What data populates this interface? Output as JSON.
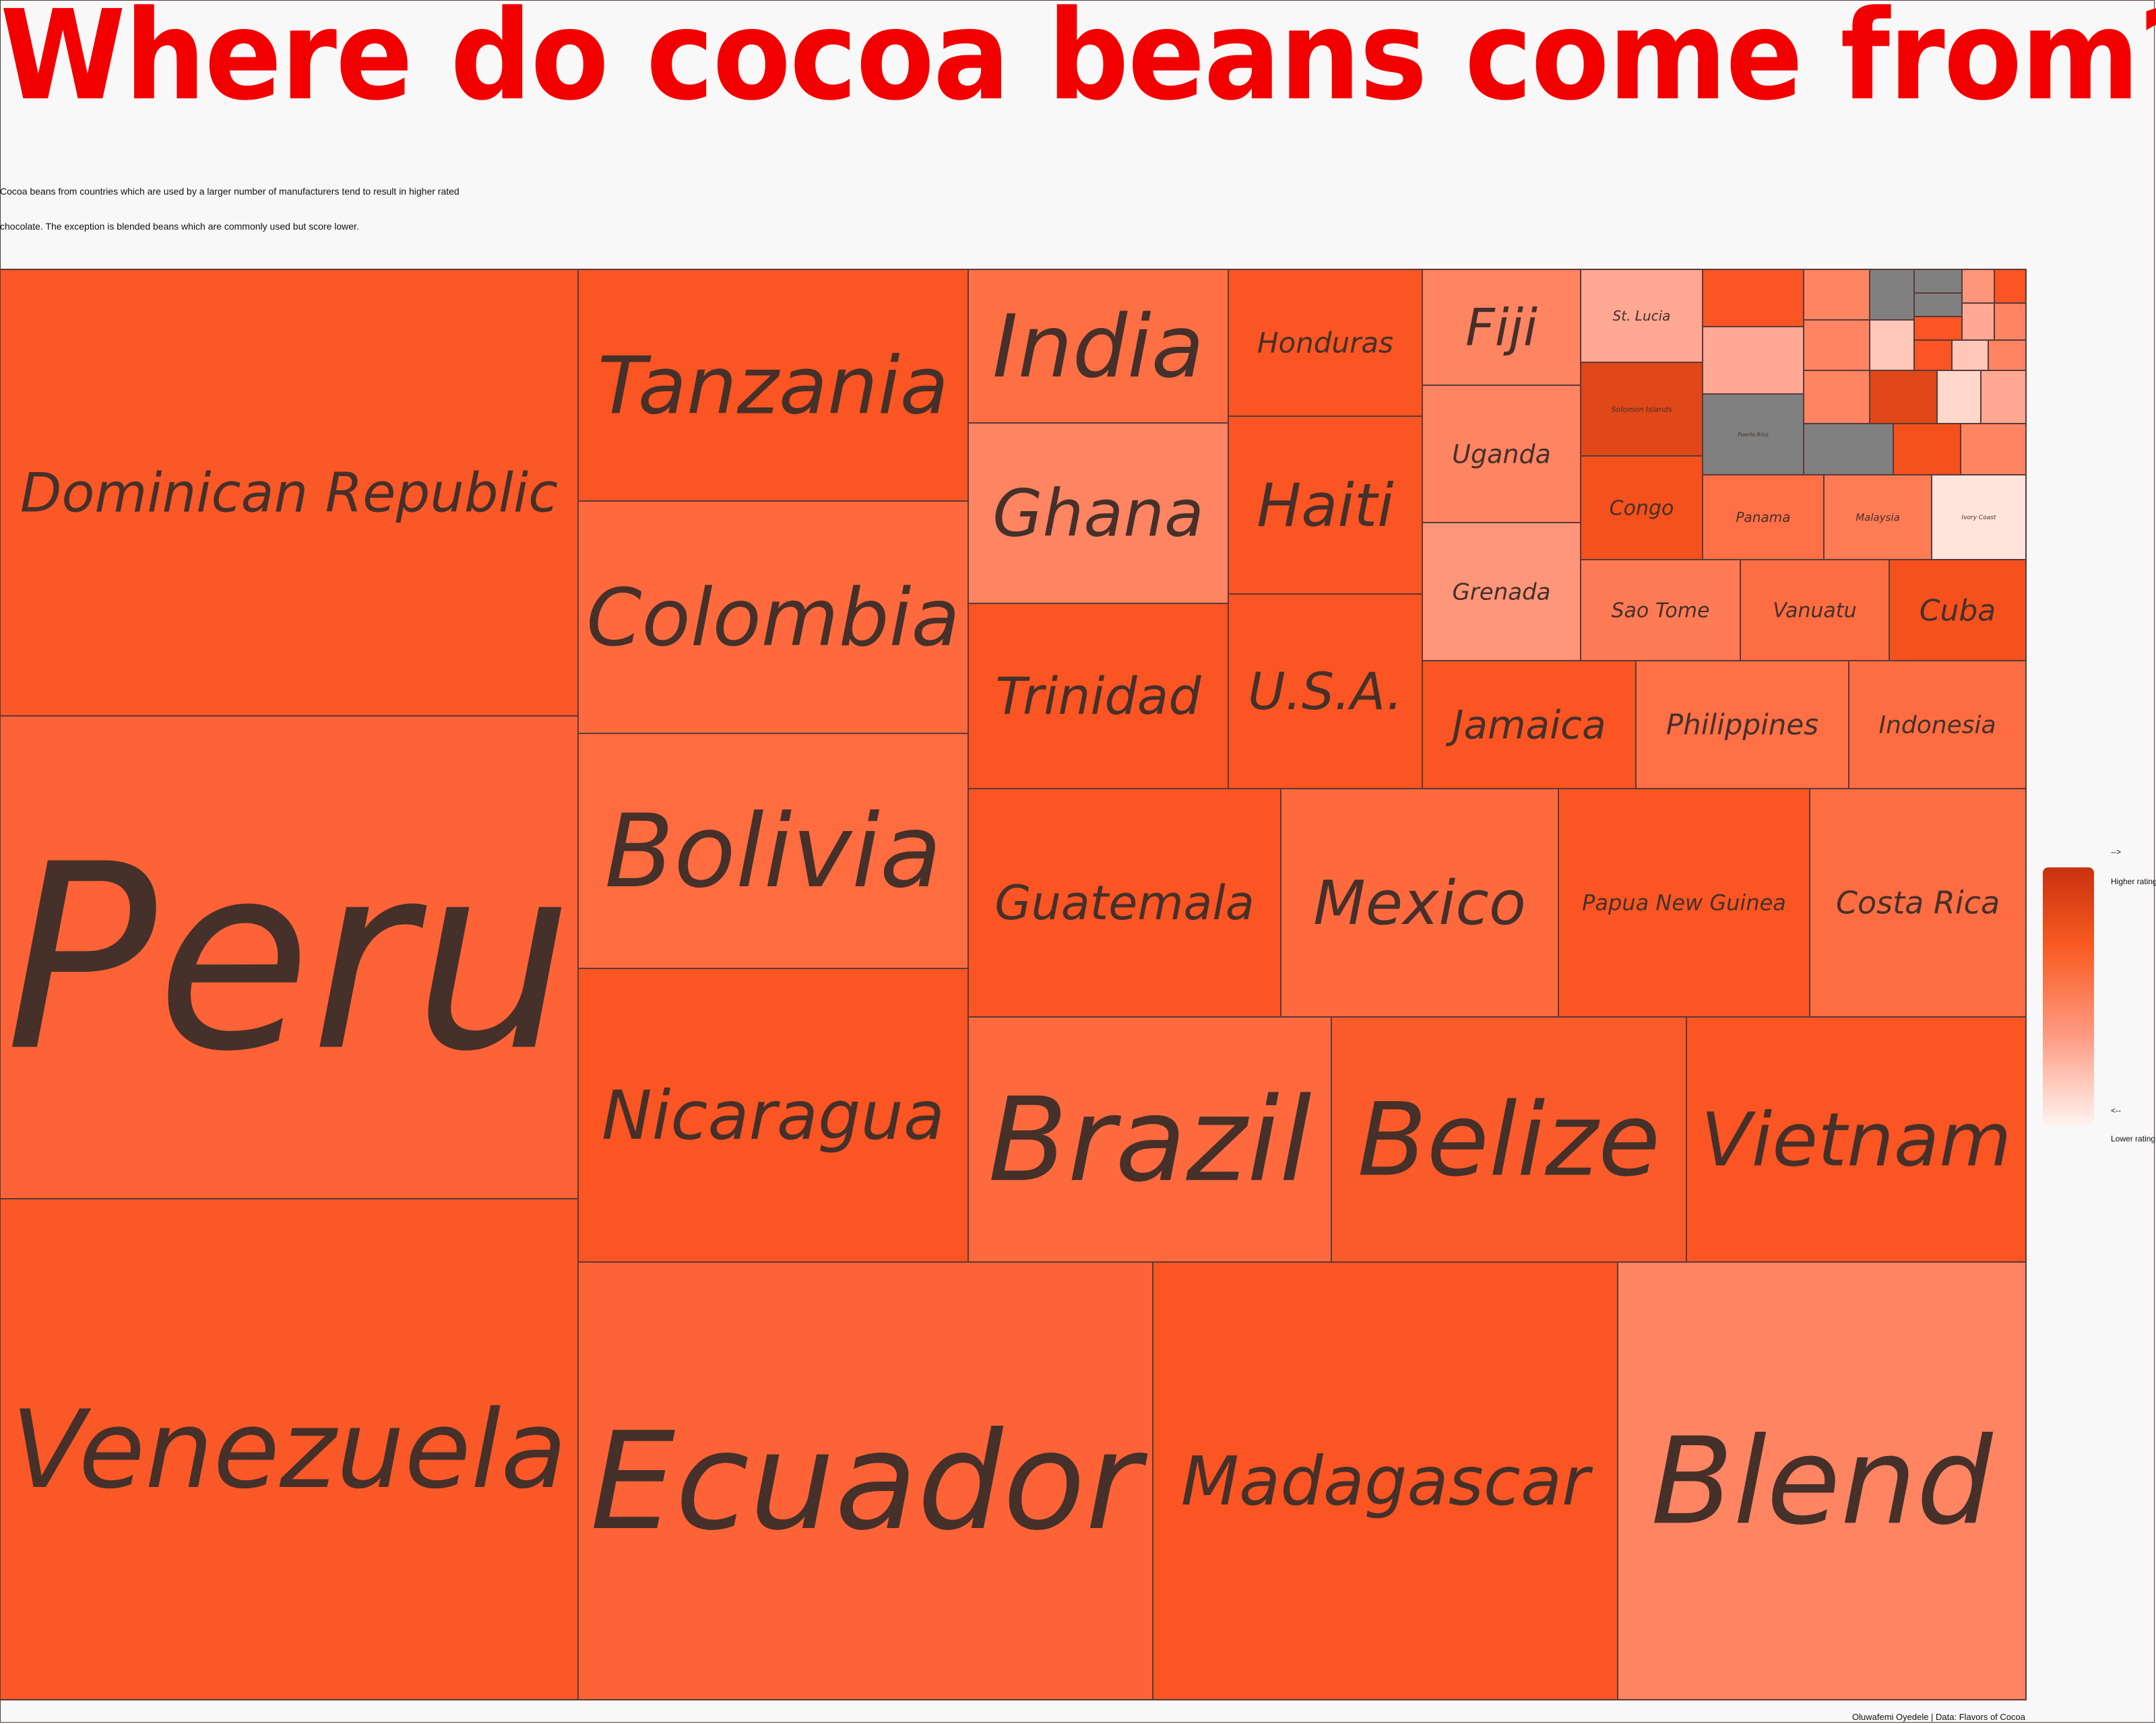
{
  "title": "Where do cocoa beans come from?",
  "subtitle_line1": "Cocoa beans from countries which are used by a larger number of manufacturers tend to result in higher rated",
  "subtitle_line2": "chocolate. The exception is blended beans which are commonly used but score lower.",
  "legend": {
    "arrow_up": "-->",
    "high_label": "Higher rating",
    "arrow_down": "<--",
    "low_label": "Lower rating"
  },
  "caption": "Oluwafemi Oyedele | Data: Flavors of Cocoa",
  "colors": {
    "title": "#f20000",
    "label": "#45302a",
    "no_data": "#808080",
    "scale_high": "#c9310f",
    "scale_low": "#fff4f1"
  },
  "chart_data": {
    "type": "treemap",
    "size_measure": "number of manufacturers using beans from the country (relative)",
    "color_measure": "average rating (darker = higher)",
    "title": "Where do cocoa beans come from?",
    "items": [
      {
        "label": "Dominican Republic",
        "size": 100,
        "rating_level": 0.7,
        "color": "#fa5827"
      },
      {
        "label": "Peru",
        "size": 120,
        "rating_level": 0.6,
        "color": "#fd6336"
      },
      {
        "label": "Venezuela",
        "size": 111,
        "rating_level": 0.7,
        "color": "#fa5827"
      },
      {
        "label": "Tanzania",
        "size": 37,
        "rating_level": 0.72,
        "color": "#fa5522"
      },
      {
        "label": "Colombia",
        "size": 37,
        "rating_level": 0.58,
        "color": "#fe6a3e"
      },
      {
        "label": "Bolivia",
        "size": 37,
        "rating_level": 0.56,
        "color": "#fe6c40"
      },
      {
        "label": "Nicaragua",
        "size": 47,
        "rating_level": 0.72,
        "color": "#fa5522"
      },
      {
        "label": "India",
        "size": 16,
        "rating_level": 0.54,
        "color": "#ff6f44"
      },
      {
        "label": "Ghana",
        "size": 19,
        "rating_level": 0.45,
        "color": "#ff8462"
      },
      {
        "label": "Trinidad",
        "size": 19,
        "rating_level": 0.72,
        "color": "#fa5522"
      },
      {
        "label": "Honduras",
        "size": 11,
        "rating_level": 0.72,
        "color": "#fa5522"
      },
      {
        "label": "Haiti",
        "size": 14,
        "rating_level": 0.72,
        "color": "#fa5522"
      },
      {
        "label": "U.S.A.",
        "size": 11,
        "rating_level": 0.72,
        "color": "#fa5522"
      },
      {
        "label": "Fiji",
        "size": 9,
        "rating_level": 0.45,
        "color": "#ff8462"
      },
      {
        "label": "Uganda",
        "size": 9,
        "rating_level": 0.45,
        "color": "#ff8462"
      },
      {
        "label": "Grenada",
        "size": 9,
        "rating_level": 0.35,
        "color": "#ff967a"
      },
      {
        "label": "St. Lucia",
        "size": 3,
        "rating_level": 0.25,
        "color": "#ffa893"
      },
      {
        "label": "Solomon Islands",
        "size": 2,
        "rating_level": 0.85,
        "color": "#e04719"
      },
      {
        "label": "Congo",
        "size": 4,
        "rating_level": 0.75,
        "color": "#f4511d"
      },
      {
        "label": "Puerto Rico",
        "size": 2,
        "rating_level": null,
        "color": "#808080"
      },
      {
        "label": "Panama",
        "size": 3,
        "rating_level": 0.55,
        "color": "#ff7046"
      },
      {
        "label": "Malaysia",
        "size": 3,
        "rating_level": 0.5,
        "color": "#ff7c55"
      },
      {
        "label": "Ivory Coast",
        "size": 3,
        "rating_level": 0.05,
        "color": "#ffe4dc"
      },
      {
        "label": "Sao Tome",
        "size": 5,
        "rating_level": 0.5,
        "color": "#ff7b55"
      },
      {
        "label": "Vanuatu",
        "size": 5,
        "rating_level": 0.56,
        "color": "#fe6d42"
      },
      {
        "label": "Cuba",
        "size": 4,
        "rating_level": 0.75,
        "color": "#f4511d"
      },
      {
        "label": "Jamaica",
        "size": 7,
        "rating_level": 0.72,
        "color": "#fa5522"
      },
      {
        "label": "Philippines",
        "size": 7,
        "rating_level": 0.55,
        "color": "#ff7046"
      },
      {
        "label": "Indonesia",
        "size": 6,
        "rating_level": 0.56,
        "color": "#fe6d42"
      },
      {
        "label": "Guatemala",
        "size": 18,
        "rating_level": 0.72,
        "color": "#fa5522"
      },
      {
        "label": "Mexico",
        "size": 14,
        "rating_level": 0.58,
        "color": "#fe6a3e"
      },
      {
        "label": "Papua New Guinea",
        "size": 13,
        "rating_level": 0.72,
        "color": "#fa5522"
      },
      {
        "label": "Costa Rica",
        "size": 11,
        "rating_level": 0.56,
        "color": "#fe6d42"
      },
      {
        "label": "Brazil",
        "size": 21,
        "rating_level": 0.58,
        "color": "#fe6a3e"
      },
      {
        "label": "Belize",
        "size": 20,
        "rating_level": 0.68,
        "color": "#fb5b2a"
      },
      {
        "label": "Vietnam",
        "size": 19,
        "rating_level": 0.72,
        "color": "#fa5522"
      },
      {
        "label": "Ecuador",
        "size": 62,
        "rating_level": 0.6,
        "color": "#fd6336"
      },
      {
        "label": "Madagascar",
        "size": 50,
        "rating_level": 0.72,
        "color": "#fa5522"
      },
      {
        "label": "Blend",
        "size": 44,
        "rating_level": 0.45,
        "color": "#ff8462"
      }
    ],
    "unlabeled_small_tiles": [
      {
        "color": "#fa5522"
      },
      {
        "color": "#ff8462"
      },
      {
        "color": "#808080"
      },
      {
        "color": "#808080"
      },
      {
        "color": "#ff967a"
      },
      {
        "color": "#fa5522"
      },
      {
        "color": "#ffa893"
      },
      {
        "color": "#ff8462"
      },
      {
        "color": "#ffc8b8"
      },
      {
        "color": "#808080"
      },
      {
        "color": "#fa5522"
      },
      {
        "color": "#ffa893"
      },
      {
        "color": "#ff8462"
      },
      {
        "color": "#fa5522"
      },
      {
        "color": "#ffc8b8"
      },
      {
        "color": "#ff8462"
      },
      {
        "color": "#ff8462"
      },
      {
        "color": "#e04719"
      },
      {
        "color": "#ffd7cb"
      },
      {
        "color": "#808080"
      },
      {
        "color": "#f4511d"
      },
      {
        "color": "#ff8462"
      },
      {
        "color": "#ffa893"
      }
    ],
    "legend": {
      "position": "right",
      "high": "Higher rating",
      "low": "Lower rating"
    }
  }
}
